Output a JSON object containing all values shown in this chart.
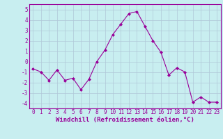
{
  "x": [
    0,
    1,
    2,
    3,
    4,
    5,
    6,
    7,
    8,
    9,
    10,
    11,
    12,
    13,
    14,
    15,
    16,
    17,
    18,
    19,
    20,
    21,
    22,
    23
  ],
  "y": [
    -0.7,
    -1.0,
    -1.8,
    -0.8,
    -1.8,
    -1.6,
    -2.7,
    -1.7,
    0.0,
    1.1,
    2.6,
    3.6,
    4.6,
    4.8,
    3.4,
    2.0,
    0.9,
    -1.3,
    -0.6,
    -1.0,
    -3.9,
    -3.4,
    -3.9,
    -3.9
  ],
  "line_color": "#990099",
  "marker": "D",
  "marker_size": 2.0,
  "bg_color": "#c8eef0",
  "grid_color": "#b0c8d8",
  "xlabel": "Windchill (Refroidissement éolien,°C)",
  "ylim": [
    -4.5,
    5.5
  ],
  "xlim": [
    -0.5,
    23.5
  ],
  "yticks": [
    -4,
    -3,
    -2,
    -1,
    0,
    1,
    2,
    3,
    4,
    5
  ],
  "xticks": [
    0,
    1,
    2,
    3,
    4,
    5,
    6,
    7,
    8,
    9,
    10,
    11,
    12,
    13,
    14,
    15,
    16,
    17,
    18,
    19,
    20,
    21,
    22,
    23
  ],
  "tick_fontsize": 5.5,
  "xlabel_fontsize": 6.5,
  "spine_color": "#990099",
  "xlabel_color": "#990099"
}
